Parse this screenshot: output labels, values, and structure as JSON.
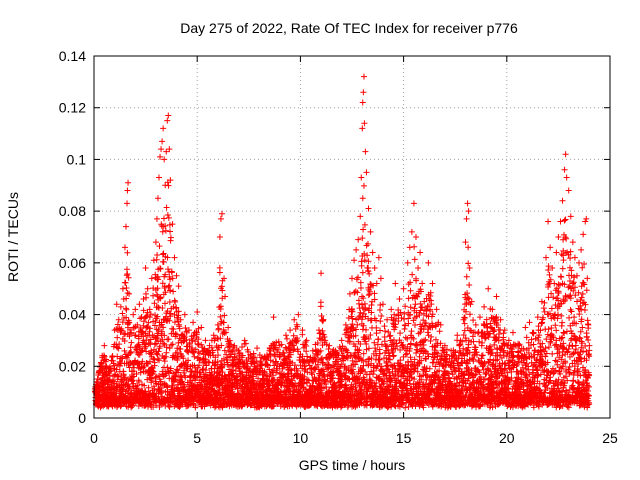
{
  "chart_data": {
    "type": "scatter",
    "title": "Day 275 of 2022, Rate Of TEC Index for receiver p776",
    "xlabel": "GPS time / hours",
    "ylabel": "ROTI / TECUs",
    "xlim": [
      0,
      25
    ],
    "ylim": [
      0,
      0.14
    ],
    "xticks": [
      0,
      5,
      10,
      15,
      20,
      25
    ],
    "xtick_labels": [
      "0",
      "5",
      "10",
      "15",
      "20",
      "25"
    ],
    "yticks": [
      0,
      0.02,
      0.04,
      0.06,
      0.08,
      0.1,
      0.12,
      0.14
    ],
    "ytick_labels": [
      "0",
      "0.02",
      "0.04",
      "0.06",
      "0.08",
      "0.1",
      "0.12",
      "0.14"
    ],
    "grid": true,
    "marker": "+",
    "color": "#ff0000",
    "series": [
      {
        "name": "ROTI",
        "points": [
          [
            0.1,
            0.013
          ],
          [
            0.3,
            0.02
          ],
          [
            0.5,
            0.028
          ],
          [
            0.7,
            0.018
          ],
          [
            0.9,
            0.024
          ],
          [
            1.0,
            0.034
          ],
          [
            1.1,
            0.044
          ],
          [
            1.2,
            0.038
          ],
          [
            1.3,
            0.043
          ],
          [
            1.4,
            0.05
          ],
          [
            1.5,
            0.066
          ],
          [
            1.55,
            0.074
          ],
          [
            1.6,
            0.083
          ],
          [
            1.62,
            0.088
          ],
          [
            1.65,
            0.091
          ],
          [
            1.7,
            0.048
          ],
          [
            1.8,
            0.033
          ],
          [
            1.9,
            0.04
          ],
          [
            2.0,
            0.042
          ],
          [
            2.1,
            0.036
          ],
          [
            2.2,
            0.044
          ],
          [
            2.3,
            0.039
          ],
          [
            2.4,
            0.046
          ],
          [
            2.5,
            0.058
          ],
          [
            2.6,
            0.05
          ],
          [
            2.7,
            0.042
          ],
          [
            2.8,
            0.054
          ],
          [
            2.9,
            0.061
          ],
          [
            3.0,
            0.068
          ],
          [
            3.05,
            0.077
          ],
          [
            3.1,
            0.085
          ],
          [
            3.15,
            0.093
          ],
          [
            3.2,
            0.101
          ],
          [
            3.25,
            0.104
          ],
          [
            3.3,
            0.107
          ],
          [
            3.35,
            0.112
          ],
          [
            3.4,
            0.1
          ],
          [
            3.45,
            0.09
          ],
          [
            3.5,
            0.103
          ],
          [
            3.55,
            0.115
          ],
          [
            3.6,
            0.117
          ],
          [
            3.65,
            0.104
          ],
          [
            3.7,
            0.092
          ],
          [
            3.8,
            0.075
          ],
          [
            3.9,
            0.062
          ],
          [
            4.0,
            0.055
          ],
          [
            4.1,
            0.051
          ],
          [
            4.2,
            0.038
          ],
          [
            4.4,
            0.04
          ],
          [
            4.6,
            0.034
          ],
          [
            4.8,
            0.037
          ],
          [
            5.0,
            0.041
          ],
          [
            5.2,
            0.035
          ],
          [
            5.4,
            0.03
          ],
          [
            5.6,
            0.028
          ],
          [
            5.8,
            0.032
          ],
          [
            6.0,
            0.036
          ],
          [
            6.1,
            0.07
          ],
          [
            6.15,
            0.077
          ],
          [
            6.2,
            0.079
          ],
          [
            6.3,
            0.054
          ],
          [
            6.35,
            0.047
          ],
          [
            6.5,
            0.035
          ],
          [
            6.8,
            0.028
          ],
          [
            7.0,
            0.026
          ],
          [
            7.3,
            0.03
          ],
          [
            7.6,
            0.024
          ],
          [
            7.9,
            0.027
          ],
          [
            8.2,
            0.023
          ],
          [
            8.5,
            0.026
          ],
          [
            8.7,
            0.039
          ],
          [
            9.0,
            0.028
          ],
          [
            9.3,
            0.032
          ],
          [
            9.5,
            0.034
          ],
          [
            9.7,
            0.038
          ],
          [
            9.9,
            0.04
          ],
          [
            10.1,
            0.034
          ],
          [
            10.3,
            0.03
          ],
          [
            10.6,
            0.026
          ],
          [
            10.9,
            0.034
          ],
          [
            11.0,
            0.056
          ],
          [
            11.2,
            0.03
          ],
          [
            11.4,
            0.028
          ],
          [
            11.7,
            0.026
          ],
          [
            12.0,
            0.03
          ],
          [
            12.2,
            0.036
          ],
          [
            12.4,
            0.048
          ],
          [
            12.5,
            0.054
          ],
          [
            12.6,
            0.061
          ],
          [
            12.7,
            0.065
          ],
          [
            12.8,
            0.069
          ],
          [
            12.9,
            0.078
          ],
          [
            12.95,
            0.093
          ],
          [
            13.0,
            0.112
          ],
          [
            13.02,
            0.122
          ],
          [
            13.05,
            0.126
          ],
          [
            13.08,
            0.132
          ],
          [
            13.1,
            0.114
          ],
          [
            13.15,
            0.103
          ],
          [
            13.2,
            0.095
          ],
          [
            13.3,
            0.081
          ],
          [
            13.4,
            0.072
          ],
          [
            13.5,
            0.064
          ],
          [
            13.6,
            0.058
          ],
          [
            13.7,
            0.052
          ],
          [
            13.8,
            0.062
          ],
          [
            13.9,
            0.054
          ],
          [
            14.0,
            0.044
          ],
          [
            14.2,
            0.038
          ],
          [
            14.4,
            0.042
          ],
          [
            14.6,
            0.052
          ],
          [
            14.8,
            0.046
          ],
          [
            15.0,
            0.05
          ],
          [
            15.2,
            0.06
          ],
          [
            15.3,
            0.066
          ],
          [
            15.4,
            0.072
          ],
          [
            15.5,
            0.083
          ],
          [
            15.6,
            0.07
          ],
          [
            15.7,
            0.058
          ],
          [
            15.8,
            0.064
          ],
          [
            15.9,
            0.052
          ],
          [
            16.0,
            0.045
          ],
          [
            16.2,
            0.06
          ],
          [
            16.4,
            0.052
          ],
          [
            16.6,
            0.042
          ],
          [
            16.8,
            0.036
          ],
          [
            17.0,
            0.028
          ],
          [
            17.3,
            0.026
          ],
          [
            17.6,
            0.032
          ],
          [
            17.9,
            0.038
          ],
          [
            18.0,
            0.068
          ],
          [
            18.05,
            0.077
          ],
          [
            18.1,
            0.083
          ],
          [
            18.15,
            0.08
          ],
          [
            18.2,
            0.058
          ],
          [
            18.3,
            0.045
          ],
          [
            18.5,
            0.036
          ],
          [
            18.7,
            0.039
          ],
          [
            18.9,
            0.043
          ],
          [
            19.1,
            0.05
          ],
          [
            19.3,
            0.042
          ],
          [
            19.5,
            0.047
          ],
          [
            19.7,
            0.038
          ],
          [
            19.9,
            0.034
          ],
          [
            20.1,
            0.03
          ],
          [
            20.3,
            0.033
          ],
          [
            20.6,
            0.028
          ],
          [
            20.9,
            0.035
          ],
          [
            21.1,
            0.037
          ],
          [
            21.3,
            0.033
          ],
          [
            21.5,
            0.039
          ],
          [
            21.7,
            0.045
          ],
          [
            21.9,
            0.062
          ],
          [
            22.0,
            0.076
          ],
          [
            22.1,
            0.066
          ],
          [
            22.2,
            0.058
          ],
          [
            22.3,
            0.052
          ],
          [
            22.4,
            0.064
          ],
          [
            22.5,
            0.07
          ],
          [
            22.6,
            0.076
          ],
          [
            22.7,
            0.084
          ],
          [
            22.8,
            0.096
          ],
          [
            22.85,
            0.102
          ],
          [
            22.9,
            0.093
          ],
          [
            23.0,
            0.088
          ],
          [
            23.1,
            0.078
          ],
          [
            23.2,
            0.068
          ],
          [
            23.3,
            0.062
          ],
          [
            23.4,
            0.055
          ],
          [
            23.5,
            0.06
          ],
          [
            23.6,
            0.065
          ],
          [
            23.7,
            0.071
          ],
          [
            23.8,
            0.076
          ],
          [
            23.85,
            0.077
          ],
          [
            23.9,
            0.054
          ],
          [
            23.95,
            0.036
          ],
          [
            24.0,
            0.028
          ]
        ]
      }
    ]
  }
}
